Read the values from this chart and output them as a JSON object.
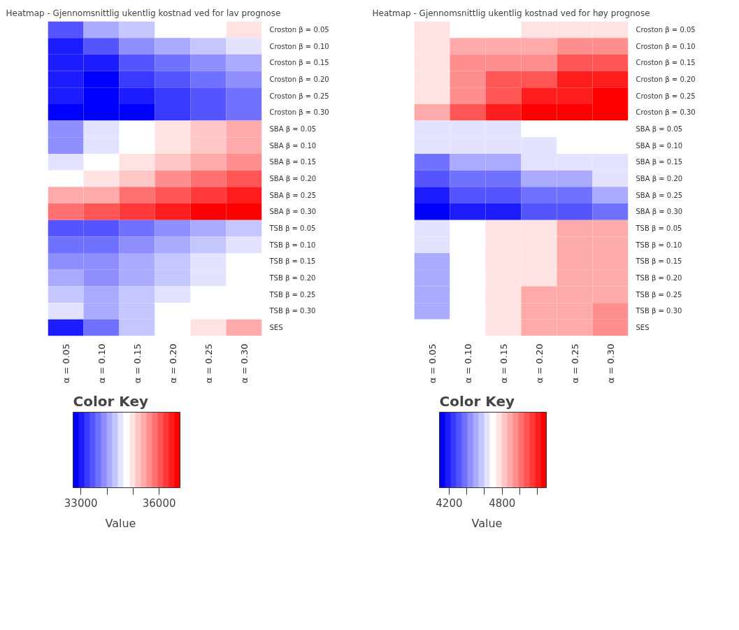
{
  "chart_data": [
    {
      "type": "heatmap",
      "title": "Heatmap - Gjennomsnittlig ukentlig kostnad ved for lav prognose",
      "categories": [
        "α = 0.05",
        "α = 0.10",
        "α = 0.15",
        "α = 0.20",
        "α = 0.25",
        "α = 0.30"
      ],
      "y_categories": [
        "Croston β = 0.05",
        "Croston β = 0.10",
        "Croston β = 0.15",
        "Croston β = 0.20",
        "Croston β = 0.25",
        "Croston β = 0.30",
        "SBA β = 0.05",
        "SBA β = 0.10",
        "SBA β = 0.15",
        "SBA β = 0.20",
        "SBA β = 0.25",
        "SBA β = 0.30",
        "TSB β = 0.05",
        "TSB β = 0.10",
        "TSB β = 0.15",
        "TSB β = 0.20",
        "TSB β = 0.25",
        "TSB β = 0.30",
        "SES"
      ],
      "cells": [
        [
          33460,
          34100,
          34320,
          34750,
          34750,
          34970
        ],
        [
          33020,
          33460,
          33890,
          34100,
          34320,
          34530
        ],
        [
          33020,
          33020,
          33460,
          33670,
          33890,
          34100
        ],
        [
          33020,
          32810,
          33240,
          33460,
          33670,
          33890
        ],
        [
          33020,
          32810,
          33020,
          33240,
          33460,
          33670
        ],
        [
          32810,
          32810,
          32810,
          33240,
          33460,
          33670
        ],
        [
          33890,
          34530,
          34750,
          34970,
          35180,
          35400
        ],
        [
          33890,
          34530,
          34750,
          34970,
          35180,
          35400
        ],
        [
          34530,
          34750,
          34970,
          35180,
          35400,
          35610
        ],
        [
          34750,
          34970,
          35180,
          35610,
          35830,
          36050
        ],
        [
          35400,
          35400,
          35830,
          36050,
          36260,
          36480
        ],
        [
          35830,
          36050,
          36260,
          36480,
          36690,
          36690
        ],
        [
          33460,
          33460,
          33670,
          33890,
          34100,
          34320
        ],
        [
          33670,
          33670,
          33890,
          34100,
          34320,
          34530
        ],
        [
          33890,
          33890,
          34100,
          34320,
          34530,
          34750
        ],
        [
          34100,
          33890,
          34100,
          34320,
          34530,
          34750
        ],
        [
          34320,
          34100,
          34320,
          34530,
          34750,
          34750
        ],
        [
          34530,
          34100,
          34320,
          34750,
          34750,
          34750
        ],
        [
          33020,
          33670,
          34320,
          34750,
          34970,
          35400
        ]
      ],
      "clim": [
        32700,
        36800
      ],
      "cticks": [
        33000,
        {
          "value": 34000,
          "label": null
        },
        {
          "value": 35000,
          "label": null
        },
        36000
      ],
      "clabel": "Value",
      "annotations": [
        "Color Key"
      ]
    },
    {
      "type": "heatmap",
      "title": "Heatmap - Gjennomsnittlig ukentlig kostnad ved for høy prognose",
      "categories": [
        "α = 0.05",
        "α = 0.10",
        "α = 0.15",
        "α = 0.20",
        "α = 0.25",
        "α = 0.30"
      ],
      "y_categories": [
        "Croston β = 0.05",
        "Croston β = 0.10",
        "Croston β = 0.15",
        "Croston β = 0.20",
        "Croston β = 0.25",
        "Croston β = 0.30",
        "SBA β = 0.05",
        "SBA β = 0.10",
        "SBA β = 0.15",
        "SBA β = 0.20",
        "SBA β = 0.25",
        "SBA β = 0.30",
        "TSB β = 0.05",
        "TSB β = 0.10",
        "TSB β = 0.15",
        "TSB β = 0.20",
        "TSB β = 0.25",
        "TSB β = 0.30",
        "SES"
      ],
      "cells": [
        [
          4760,
          4700,
          4700,
          4760,
          4760,
          4760
        ],
        [
          4760,
          4890,
          4890,
          4890,
          4950,
          4950
        ],
        [
          4760,
          4950,
          4950,
          4950,
          5080,
          5080
        ],
        [
          4760,
          4950,
          5080,
          5080,
          5210,
          5210
        ],
        [
          4760,
          4950,
          5080,
          5210,
          5210,
          5270
        ],
        [
          4890,
          5080,
          5210,
          5270,
          5270,
          5270
        ],
        [
          4630,
          4630,
          4630,
          4700,
          4700,
          4700
        ],
        [
          4630,
          4630,
          4630,
          4630,
          4700,
          4700
        ],
        [
          4380,
          4500,
          4500,
          4630,
          4630,
          4630
        ],
        [
          4310,
          4380,
          4380,
          4500,
          4500,
          4630
        ],
        [
          4190,
          4310,
          4310,
          4380,
          4380,
          4500
        ],
        [
          4120,
          4190,
          4190,
          4310,
          4310,
          4380
        ],
        [
          4630,
          4700,
          4760,
          4760,
          4890,
          4890
        ],
        [
          4630,
          4700,
          4760,
          4760,
          4890,
          4890
        ],
        [
          4500,
          4700,
          4760,
          4760,
          4890,
          4890
        ],
        [
          4500,
          4700,
          4760,
          4760,
          4890,
          4890
        ],
        [
          4500,
          4700,
          4760,
          4890,
          4890,
          4890
        ],
        [
          4500,
          4700,
          4760,
          4890,
          4890,
          4950
        ],
        [
          4700,
          4700,
          4760,
          4890,
          4890,
          4950
        ]
      ],
      "clim": [
        4090,
        5300
      ],
      "cticks": [
        4200,
        {
          "value": 4400,
          "label": null
        },
        {
          "value": 4600,
          "label": null
        },
        4800,
        {
          "value": 5000,
          "label": null
        },
        {
          "value": 5200,
          "label": null
        }
      ],
      "clabel": "Value",
      "annotations": [
        "Color Key"
      ]
    }
  ]
}
